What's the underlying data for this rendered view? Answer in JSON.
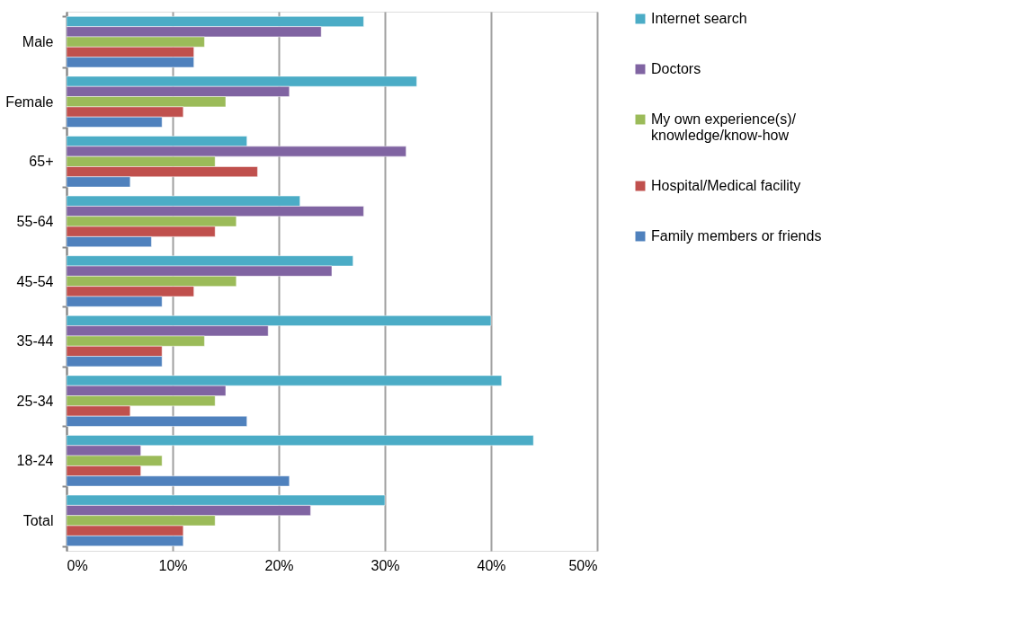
{
  "chart_data": {
    "type": "bar",
    "orientation": "horizontal",
    "categories": [
      "Male",
      "Female",
      "65+",
      "55-64",
      "45-54",
      "35-44",
      "25-34",
      "18-24",
      "Total"
    ],
    "series": [
      {
        "name": "Internet search",
        "color": "#4bacc6",
        "values": [
          28,
          33,
          17,
          22,
          27,
          40,
          41,
          44,
          30
        ]
      },
      {
        "name": "Doctors",
        "color": "#8064a2",
        "values": [
          24,
          21,
          32,
          28,
          25,
          19,
          15,
          7,
          23
        ]
      },
      {
        "name": "My own experience(s)/\nknowledge/know-how",
        "color": "#9bbb59",
        "values": [
          13,
          15,
          14,
          16,
          16,
          13,
          14,
          9,
          14
        ]
      },
      {
        "name": "Hospital/Medical facility",
        "color": "#c0504d",
        "values": [
          12,
          11,
          18,
          14,
          12,
          9,
          6,
          7,
          11
        ]
      },
      {
        "name": "Family members or friends",
        "color": "#4f81bd",
        "values": [
          12,
          9,
          6,
          8,
          9,
          9,
          17,
          21,
          11
        ]
      }
    ],
    "xlim": [
      0,
      50
    ],
    "xticks": [
      {
        "value": 0,
        "label": "0%"
      },
      {
        "value": 10,
        "label": "10%"
      },
      {
        "value": 20,
        "label": "20%"
      },
      {
        "value": 30,
        "label": "30%"
      },
      {
        "value": 40,
        "label": "40%"
      },
      {
        "value": 50,
        "label": "50%"
      }
    ],
    "grid": "x",
    "legend": "right"
  }
}
